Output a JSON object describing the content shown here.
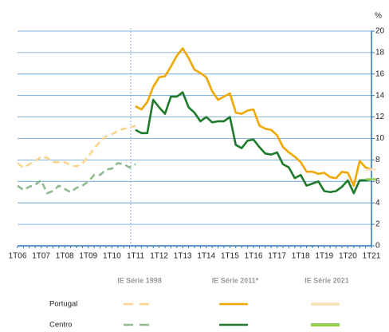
{
  "chart_data": {
    "type": "line",
    "y_label": "%",
    "categories": [
      "1T06",
      null,
      null,
      null,
      "1T07",
      null,
      null,
      null,
      "1T08",
      null,
      null,
      null,
      "1T09",
      null,
      null,
      null,
      "1T10",
      null,
      null,
      null,
      "1T11",
      null,
      null,
      null,
      "1T12",
      null,
      null,
      null,
      "1T13",
      null,
      null,
      null,
      "1T14",
      null,
      null,
      null,
      "1T15",
      null,
      null,
      null,
      "1T16",
      null,
      null,
      null,
      "1T17",
      null,
      null,
      null,
      "1T18",
      null,
      null,
      null,
      "1T19",
      null,
      null,
      null,
      "1T20",
      null,
      null,
      null,
      "1T21"
    ],
    "ylim": [
      0,
      20
    ],
    "yticks": [
      0,
      2,
      4,
      6,
      8,
      10,
      12,
      14,
      16,
      18,
      20
    ],
    "grid": true,
    "legend": {
      "columns": [
        "IE Série 1998",
        "IE Série 2011*",
        "IE Série 2021"
      ],
      "rows": [
        "Portugal",
        "Centro"
      ]
    },
    "series": [
      {
        "color": "#fad590",
        "dashed": true,
        "values": [
          7.7,
          7.3,
          7.6,
          7.9,
          8.3,
          8.2,
          7.8,
          7.8,
          7.8,
          7.5,
          7.4,
          7.7,
          8.3,
          9.1,
          9.7,
          10.2,
          10.4,
          10.7,
          10.9,
          11.0,
          11.2,
          null,
          null,
          null,
          null,
          null,
          null,
          null,
          null,
          null,
          null,
          null,
          null,
          null,
          null,
          null,
          null,
          null,
          null,
          null,
          null,
          null,
          null,
          null,
          null,
          null,
          null,
          null,
          null,
          null,
          null,
          null,
          null,
          null,
          null,
          null,
          null,
          null,
          null,
          null,
          null
        ]
      },
      {
        "color": "#8fb98f",
        "dashed": true,
        "values": [
          5.6,
          5.2,
          5.5,
          5.7,
          6.1,
          4.9,
          5.1,
          5.6,
          5.3,
          5.0,
          5.4,
          5.6,
          6.0,
          6.6,
          6.6,
          7.1,
          7.2,
          7.7,
          7.6,
          7.3,
          7.6,
          null,
          null,
          null,
          null,
          null,
          null,
          null,
          null,
          null,
          null,
          null,
          null,
          null,
          null,
          null,
          null,
          null,
          null,
          null,
          null,
          null,
          null,
          null,
          null,
          null,
          null,
          null,
          null,
          null,
          null,
          null,
          null,
          null,
          null,
          null,
          null,
          null,
          null,
          null,
          null
        ]
      },
      {
        "color": "#f0a800",
        "dashed": false,
        "values": [
          null,
          null,
          null,
          null,
          null,
          null,
          null,
          null,
          null,
          null,
          null,
          null,
          null,
          null,
          null,
          null,
          null,
          null,
          null,
          null,
          13.0,
          12.7,
          13.4,
          14.8,
          15.7,
          15.8,
          16.7,
          17.7,
          18.4,
          17.5,
          16.4,
          16.1,
          15.7,
          14.4,
          13.6,
          13.9,
          14.2,
          12.4,
          12.3,
          12.6,
          12.7,
          11.2,
          10.9,
          10.8,
          10.3,
          9.2,
          8.7,
          8.3,
          7.8,
          6.9,
          6.9,
          6.7,
          6.8,
          6.4,
          6.3,
          6.9,
          6.8,
          5.6,
          7.9,
          7.3,
          7.1
        ]
      },
      {
        "color": "#1e7a2a",
        "dashed": false,
        "values": [
          null,
          null,
          null,
          null,
          null,
          null,
          null,
          null,
          null,
          null,
          null,
          null,
          null,
          null,
          null,
          null,
          null,
          null,
          null,
          null,
          10.8,
          10.5,
          10.5,
          13.6,
          12.9,
          12.3,
          13.9,
          13.9,
          14.3,
          12.9,
          12.4,
          11.6,
          12.0,
          11.5,
          11.6,
          11.6,
          12.0,
          9.4,
          9.1,
          9.8,
          9.9,
          9.2,
          8.6,
          8.5,
          8.7,
          7.6,
          7.3,
          6.3,
          6.6,
          5.6,
          5.8,
          6.0,
          5.1,
          5.0,
          5.1,
          5.5,
          6.1,
          4.9,
          6.1,
          6.1,
          6.2
        ]
      },
      {
        "color": "#fde3bd",
        "dashed": false,
        "values": [
          null,
          null,
          null,
          null,
          null,
          null,
          null,
          null,
          null,
          null,
          null,
          null,
          null,
          null,
          null,
          null,
          null,
          null,
          null,
          null,
          null,
          null,
          null,
          null,
          null,
          null,
          null,
          null,
          null,
          null,
          null,
          null,
          null,
          null,
          null,
          null,
          null,
          null,
          null,
          null,
          null,
          null,
          null,
          null,
          null,
          null,
          null,
          null,
          null,
          null,
          null,
          null,
          null,
          null,
          null,
          null,
          null,
          null,
          null,
          null,
          7.1
        ]
      },
      {
        "color": "#92d050",
        "dashed": false,
        "values": [
          null,
          null,
          null,
          null,
          null,
          null,
          null,
          null,
          null,
          null,
          null,
          null,
          null,
          null,
          null,
          null,
          null,
          null,
          null,
          null,
          null,
          null,
          null,
          null,
          null,
          null,
          null,
          null,
          null,
          null,
          null,
          null,
          null,
          null,
          null,
          null,
          null,
          null,
          null,
          null,
          null,
          null,
          null,
          null,
          null,
          null,
          null,
          null,
          null,
          null,
          null,
          null,
          null,
          null,
          null,
          null,
          null,
          null,
          null,
          null,
          6.2
        ]
      }
    ]
  }
}
